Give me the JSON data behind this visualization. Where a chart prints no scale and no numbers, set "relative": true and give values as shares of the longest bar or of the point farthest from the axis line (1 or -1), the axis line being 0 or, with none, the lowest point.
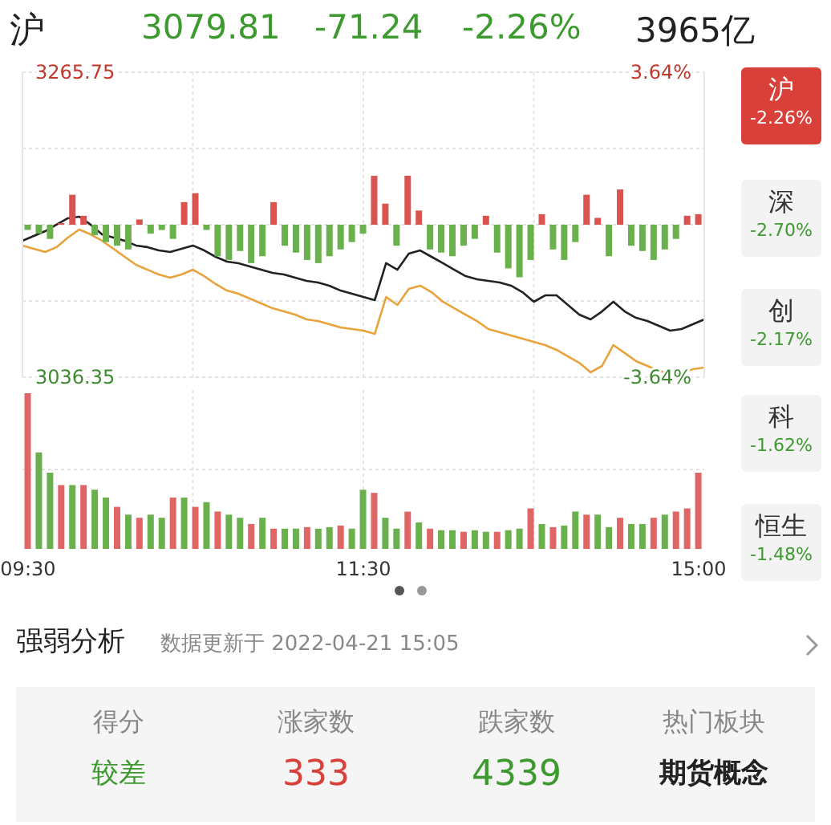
{
  "chart_data": [
    {
      "type": "line",
      "title": "沪",
      "annotations": [
        "3079.81",
        "-71.24",
        "-2.26%",
        "3965亿",
        "沪",
        "-2.26%",
        "深",
        "-2.70%",
        "创",
        "-2.17%",
        "科",
        "-1.62%",
        "恒生",
        "-1.48%"
      ],
      "categories": [
        null,
        null,
        null,
        null,
        null,
        null,
        null,
        null,
        null,
        null,
        null,
        null,
        null,
        null,
        null,
        null,
        null,
        null,
        null,
        null,
        null,
        null,
        null,
        null,
        null,
        null,
        null,
        null,
        null,
        null,
        null,
        null,
        null,
        null,
        null,
        null,
        null,
        null,
        null,
        null,
        null,
        null,
        null,
        null,
        null,
        null,
        null,
        null,
        null,
        null,
        null,
        null,
        null,
        null,
        null,
        null,
        null,
        null,
        null,
        null,
        null
      ],
      "series": [
        {
          "color": "#222222",
          "values": [
            3139.0,
            3142.6,
            3146.2,
            3151.1,
            3155.9,
            3157.1,
            3151.1,
            3143.8,
            3141.4,
            3139.0,
            3135.4,
            3134.2,
            3131.7,
            3130.5,
            3133.0,
            3135.4,
            3131.7,
            3126.9,
            3123.3,
            3122.1,
            3119.7,
            3117.2,
            3114.8,
            3113.6,
            3111.2,
            3108.8,
            3107.6,
            3105.2,
            3101.5,
            3099.1,
            3096.7,
            3094.3,
            3122.1,
            3117.2,
            3129.3,
            3131.7,
            3126.9,
            3122.1,
            3117.2,
            3112.4,
            3110.0,
            3108.8,
            3107.6,
            3105.2,
            3100.3,
            3093.1,
            3097.9,
            3097.9,
            3090.7,
            3083.4,
            3079.8,
            3085.8,
            3093.1,
            3085.8,
            3081.0,
            3078.6,
            3075.0,
            3071.4,
            3072.6,
            3076.2,
            3079.8
          ]
        },
        {
          "color": "#e8a33c",
          "values": [
            3135.4,
            3133.0,
            3130.5,
            3134.2,
            3141.4,
            3147.4,
            3143.8,
            3139.0,
            3133.0,
            3126.9,
            3120.9,
            3117.2,
            3113.6,
            3111.2,
            3113.6,
            3117.2,
            3112.4,
            3106.4,
            3101.5,
            3099.1,
            3095.5,
            3091.9,
            3088.2,
            3085.8,
            3083.4,
            3079.8,
            3078.6,
            3076.2,
            3073.8,
            3072.6,
            3071.4,
            3068.9,
            3096.7,
            3090.7,
            3102.8,
            3105.2,
            3100.3,
            3093.1,
            3088.2,
            3083.4,
            3078.6,
            3072.6,
            3070.2,
            3067.7,
            3065.3,
            3062.9,
            3060.5,
            3056.9,
            3052.0,
            3047.2,
            3040.0,
            3044.8,
            3060.5,
            3054.5,
            3048.4,
            3044.8,
            3041.2,
            3038.8,
            3040.0,
            3042.4,
            3043.6
          ]
        }
      ],
      "ylim": [
        3036.35,
        3265.75
      ],
      "yticks": [
        3265.75,
        {
          "value": 3208.4,
          "label": null
        },
        {
          "value": 3151.05,
          "label": null
        },
        {
          "value": 3093.7,
          "label": null
        },
        3036.35
      ],
      "y2lim": [
        -3.64,
        3.64
      ],
      "y2ticks": [
        {
          "value": 3.64,
          "label": "3.64%"
        },
        {
          "value": -3.64,
          "label": "-3.64%"
        }
      ],
      "grid": true,
      "tick_labels": "y"
    },
    {
      "type": "bar",
      "relative": true,
      "stacked": true,
      "tick_labels": false,
      "categories": [
        null,
        null,
        null,
        null,
        null,
        null,
        null,
        null,
        null,
        null,
        null,
        null,
        null,
        null,
        null,
        null,
        null,
        null,
        null,
        null,
        null,
        null,
        null,
        null,
        null,
        null,
        null,
        null,
        null,
        null,
        null,
        null,
        null,
        null,
        null,
        null,
        null,
        null,
        null,
        null,
        null,
        null,
        null,
        null,
        null,
        null,
        null,
        null,
        null,
        null,
        null,
        null,
        null,
        null,
        null,
        null,
        null,
        null,
        null,
        null,
        null
      ],
      "series": [
        {
          "color": "#d9534f",
          "values": [
            null,
            null,
            null,
            0.03,
            0.57,
            0.17,
            null,
            null,
            null,
            null,
            0.1,
            null,
            null,
            null,
            0.43,
            0.6,
            null,
            null,
            null,
            null,
            null,
            null,
            0.43,
            null,
            null,
            null,
            null,
            null,
            null,
            null,
            null,
            0.93,
            0.4,
            null,
            0.93,
            0.27,
            null,
            null,
            null,
            null,
            null,
            0.17,
            null,
            null,
            null,
            null,
            0.2,
            null,
            null,
            null,
            0.57,
            0.13,
            null,
            0.67,
            null,
            null,
            null,
            null,
            null,
            0.17,
            0.2
          ]
        },
        {
          "color": "#6ab04c",
          "values": [
            -0.1,
            -0.17,
            -0.27,
            null,
            null,
            null,
            -0.2,
            -0.33,
            -0.4,
            -0.47,
            null,
            -0.17,
            -0.1,
            -0.27,
            null,
            null,
            -0.1,
            -0.6,
            -0.67,
            -0.5,
            -0.73,
            -0.6,
            null,
            -0.4,
            -0.53,
            -0.67,
            -0.73,
            -0.6,
            -0.47,
            -0.33,
            -0.17,
            null,
            null,
            -0.4,
            null,
            null,
            -0.47,
            -0.53,
            -0.6,
            -0.4,
            -0.27,
            null,
            -0.53,
            -0.83,
            -1,
            -0.67,
            null,
            -0.47,
            -0.67,
            -0.33,
            null,
            null,
            -0.6,
            null,
            -0.4,
            -0.5,
            -0.67,
            -0.47,
            -0.27,
            null,
            null
          ]
        }
      ]
    },
    {
      "type": "bar",
      "relative": true,
      "stacked": true,
      "tick_labels": "x",
      "grid": true,
      "categories": [
        "09:30",
        null,
        null,
        null,
        null,
        null,
        null,
        null,
        null,
        null,
        null,
        null,
        null,
        null,
        null,
        null,
        null,
        null,
        null,
        null,
        null,
        null,
        null,
        null,
        null,
        null,
        null,
        null,
        null,
        null,
        "11:30",
        null,
        null,
        null,
        null,
        null,
        null,
        null,
        null,
        null,
        null,
        null,
        null,
        null,
        null,
        null,
        null,
        null,
        null,
        null,
        null,
        null,
        null,
        null,
        null,
        null,
        null,
        null,
        null,
        null,
        "15:00"
      ],
      "series": [
        {
          "color": "#e06666",
          "values": [
            1,
            null,
            null,
            0.41,
            null,
            0.41,
            null,
            null,
            0.27,
            null,
            0.2,
            null,
            null,
            0.33,
            null,
            0.27,
            null,
            0.24,
            null,
            null,
            0.16,
            null,
            0.13,
            null,
            null,
            0.14,
            null,
            null,
            0.15,
            null,
            null,
            0.36,
            null,
            null,
            0.24,
            null,
            0.13,
            null,
            null,
            0.11,
            null,
            null,
            0.11,
            null,
            null,
            0.26,
            null,
            0.14,
            null,
            null,
            0.22,
            null,
            null,
            0.2,
            null,
            null,
            0.2,
            null,
            0.24,
            0.26,
            0.49
          ]
        },
        {
          "color": "#6ab04c",
          "values": [
            null,
            0.62,
            0.49,
            null,
            0.41,
            null,
            0.38,
            0.33,
            null,
            0.22,
            null,
            0.22,
            0.2,
            null,
            0.33,
            null,
            0.3,
            null,
            0.22,
            0.2,
            null,
            0.2,
            null,
            0.13,
            0.13,
            null,
            0.13,
            0.14,
            null,
            0.13,
            0.38,
            null,
            0.2,
            0.13,
            null,
            0.17,
            null,
            0.12,
            0.12,
            null,
            0.12,
            0.11,
            null,
            0.12,
            0.13,
            null,
            0.16,
            null,
            0.15,
            0.24,
            null,
            0.22,
            0.14,
            null,
            0.16,
            0.16,
            null,
            0.22,
            null,
            null,
            null
          ]
        }
      ]
    },
    {
      "type": "other",
      "title": "强弱分析",
      "subtitle": "数据更新于 2022-04-21 15:05",
      "categories": [
        "得分",
        "涨家数",
        "跌家数",
        "热门板块"
      ],
      "annotations": [
        "较差",
        "333",
        "4339",
        "期货概念"
      ]
    }
  ]
}
